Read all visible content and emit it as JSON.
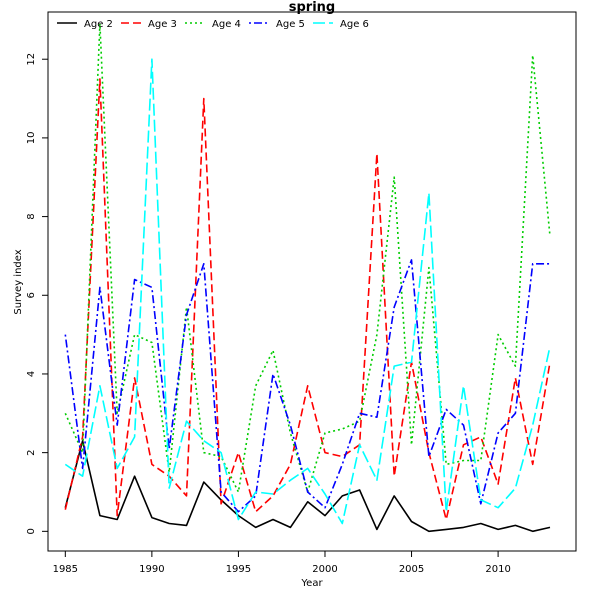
{
  "chart_data": {
    "type": "line",
    "title": "spring",
    "xlabel": "Year",
    "ylabel": "Survey index",
    "xlim": [
      1984.0,
      2014.5
    ],
    "ylim": [
      -0.5,
      13.2
    ],
    "xticks": [
      1985,
      1990,
      1995,
      2000,
      2005,
      2010
    ],
    "yticks": [
      0,
      2,
      4,
      6,
      8,
      10,
      12
    ],
    "grid": false,
    "legend_position": "top",
    "x": [
      1985,
      1986,
      1987,
      1988,
      1989,
      1990,
      1991,
      1992,
      1993,
      1994,
      1995,
      1996,
      1997,
      1998,
      1999,
      2000,
      2001,
      2002,
      2003,
      2004,
      2005,
      2006,
      2007,
      2008,
      2009,
      2010,
      2011,
      2012,
      2013
    ],
    "series": [
      {
        "name": "Age 2",
        "color": "#000000",
        "dash": "solid",
        "values": [
          0.6,
          2.3,
          0.4,
          0.3,
          1.4,
          0.35,
          0.2,
          0.15,
          1.25,
          0.8,
          0.4,
          0.1,
          0.3,
          0.1,
          0.75,
          0.4,
          0.9,
          1.05,
          0.05,
          0.9,
          0.25,
          0.0,
          0.05,
          0.1,
          0.2,
          0.05,
          0.15,
          0.0,
          0.1
        ]
      },
      {
        "name": "Age 3",
        "color": "#ff0000",
        "dash": "dashed",
        "values": [
          0.55,
          2.4,
          11.5,
          0.4,
          3.9,
          1.7,
          1.4,
          0.9,
          11.0,
          0.7,
          2.0,
          0.5,
          0.9,
          1.7,
          3.7,
          2.0,
          1.9,
          2.2,
          9.6,
          1.4,
          4.3,
          2.0,
          0.3,
          2.2,
          2.4,
          1.2,
          3.9,
          1.7,
          4.3
        ]
      },
      {
        "name": "Age 4",
        "color": "#00cc00",
        "dash": "dotted",
        "values": [
          3.0,
          2.0,
          12.9,
          3.0,
          5.0,
          4.8,
          1.5,
          5.7,
          2.0,
          1.9,
          1.0,
          3.7,
          4.6,
          2.5,
          1.0,
          2.5,
          2.6,
          2.8,
          5.0,
          9.0,
          2.2,
          6.7,
          1.7,
          1.8,
          1.8,
          5.0,
          4.2,
          12.1,
          7.5
        ]
      },
      {
        "name": "Age 5",
        "color": "#0000ff",
        "dash": "dotdash",
        "values": [
          5.0,
          1.6,
          6.2,
          2.7,
          6.4,
          6.2,
          2.1,
          5.5,
          6.8,
          1.0,
          0.5,
          0.9,
          4.0,
          2.7,
          1.0,
          0.6,
          1.7,
          3.0,
          2.9,
          5.7,
          6.9,
          1.9,
          3.1,
          2.7,
          0.7,
          2.5,
          3.0,
          6.8,
          6.8
        ]
      },
      {
        "name": "Age 6",
        "color": "#00ffff",
        "dash": "longdash",
        "values": [
          1.7,
          1.4,
          3.7,
          1.6,
          2.4,
          12.0,
          1.1,
          2.8,
          2.3,
          2.0,
          0.3,
          1.0,
          0.95,
          1.3,
          1.6,
          0.95,
          0.2,
          2.2,
          1.3,
          4.2,
          4.3,
          8.6,
          0.5,
          3.7,
          0.8,
          0.6,
          1.1,
          2.7,
          4.7
        ]
      }
    ]
  }
}
